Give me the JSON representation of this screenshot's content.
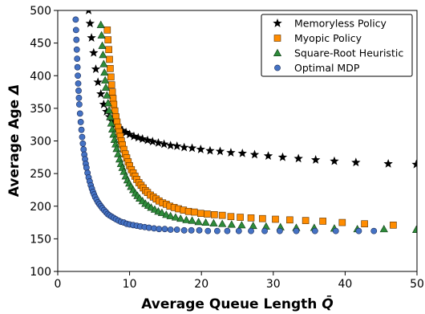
{
  "chart_data": {
    "type": "scatter",
    "title": "",
    "xlabel_main": "Average Queue Length ",
    "xlabel_symbol": "Q̄",
    "ylabel_main": "Average Age ",
    "ylabel_symbol": "Δ",
    "xlim": [
      0,
      50
    ],
    "ylim": [
      100,
      500
    ],
    "xticks": [
      0,
      10,
      20,
      30,
      40,
      50
    ],
    "yticks": [
      100,
      150,
      200,
      250,
      300,
      350,
      400,
      450,
      500
    ],
    "grid": false,
    "legend_position": "top-right",
    "series": [
      {
        "name": "Memoryless Policy",
        "marker": "star",
        "color": "#000000",
        "x": [
          4.3,
          4.5,
          4.7,
          5.0,
          5.3,
          5.6,
          6.0,
          6.4,
          6.8,
          7.2,
          7.6,
          8.0,
          8.5,
          9.0,
          9.5,
          10.0,
          10.6,
          11.2,
          11.8,
          12.5,
          13.2,
          14.0,
          14.8,
          15.7,
          16.6,
          17.6,
          18.7,
          19.9,
          21.2,
          22.6,
          24.1,
          25.7,
          27.4,
          29.3,
          31.3,
          33.5,
          35.9,
          38.5,
          41.5,
          46.0,
          49.9
        ],
        "y": [
          500,
          480,
          458,
          435,
          410,
          390,
          372,
          356,
          345,
          337,
          330,
          325,
          320,
          316,
          313,
          310,
          307,
          305,
          303,
          301,
          299,
          297,
          295,
          293,
          292,
          290,
          289,
          287,
          285,
          284,
          282,
          281,
          279,
          277,
          275,
          273,
          271,
          269,
          267,
          265,
          264
        ]
      },
      {
        "name": "Myopic Policy",
        "marker": "square",
        "color": "#ff8c00",
        "x": [
          6.9,
          7.0,
          7.1,
          7.2,
          7.3,
          7.4,
          7.5,
          7.6,
          7.7,
          7.8,
          7.95,
          8.1,
          8.25,
          8.4,
          8.55,
          8.7,
          8.85,
          9.0,
          9.2,
          9.4,
          9.6,
          9.8,
          10.0,
          10.25,
          10.5,
          10.75,
          11.0,
          11.3,
          11.6,
          11.9,
          12.2,
          12.5,
          12.9,
          13.3,
          13.7,
          14.1,
          14.6,
          15.1,
          15.6,
          16.2,
          16.8,
          17.5,
          18.2,
          19.0,
          19.9,
          20.8,
          21.8,
          22.9,
          24.1,
          25.4,
          26.9,
          28.5,
          30.3,
          32.3,
          34.5,
          36.9,
          39.6,
          42.7,
          46.7
        ],
        "y": [
          470,
          455,
          440,
          425,
          411,
          398,
          386,
          375,
          365,
          356,
          346,
          337,
          329,
          321,
          314,
          307,
          300,
          294,
          287,
          280,
          274,
          268,
          262,
          256,
          251,
          246,
          241,
          236,
          232,
          228,
          224,
          221,
          217,
          214,
          211,
          208,
          205,
          203,
          200,
          198,
          196,
          194,
          192,
          191,
          189,
          188,
          187,
          186,
          184,
          183,
          182,
          181,
          180,
          179,
          178,
          177,
          175,
          173,
          171
        ]
      },
      {
        "name": "Square-Root Heuristic",
        "marker": "triangle",
        "color": "#2e8b3a",
        "x": [
          6.0,
          6.1,
          6.2,
          6.3,
          6.4,
          6.5,
          6.6,
          6.7,
          6.85,
          7.0,
          7.15,
          7.3,
          7.45,
          7.6,
          7.75,
          7.9,
          8.05,
          8.2,
          8.4,
          8.6,
          8.8,
          9.0,
          9.2,
          9.45,
          9.7,
          9.95,
          10.2,
          10.5,
          10.8,
          11.1,
          11.4,
          11.8,
          12.2,
          12.6,
          13.0,
          13.5,
          14.0,
          14.5,
          15.1,
          15.7,
          16.4,
          17.1,
          17.9,
          18.7,
          19.6,
          20.6,
          21.7,
          22.9,
          24.2,
          25.6,
          27.2,
          29.0,
          31.0,
          33.2,
          35.7,
          38.5,
          41.7,
          45.4,
          49.9
        ],
        "y": [
          478,
          462,
          446,
          432,
          418,
          405,
          393,
          382,
          370,
          358,
          347,
          337,
          327,
          318,
          310,
          302,
          295,
          288,
          280,
          272,
          265,
          259,
          253,
          246,
          240,
          235,
          230,
          225,
          220,
          216,
          212,
          208,
          204,
          201,
          198,
          195,
          192,
          190,
          187,
          185,
          183,
          181,
          179,
          178,
          176,
          175,
          174,
          173,
          172,
          171,
          170,
          169,
          168,
          167,
          167,
          166,
          165,
          165,
          164
        ]
      },
      {
        "name": "Optimal MDP",
        "marker": "circle",
        "color": "#4472c4",
        "x": [
          2.5,
          2.55,
          2.6,
          2.65,
          2.7,
          2.75,
          2.8,
          2.85,
          2.9,
          2.95,
          3.0,
          3.1,
          3.2,
          3.3,
          3.4,
          3.5,
          3.6,
          3.7,
          3.8,
          3.9,
          4.0,
          4.15,
          4.3,
          4.45,
          4.6,
          4.75,
          4.9,
          5.05,
          5.2,
          5.4,
          5.6,
          5.8,
          6.0,
          6.2,
          6.45,
          6.7,
          6.95,
          7.2,
          7.5,
          7.8,
          8.1,
          8.45,
          8.8,
          9.2,
          9.6,
          10.0,
          10.5,
          11.0,
          11.5,
          12.1,
          12.7,
          13.4,
          14.1,
          14.9,
          15.7,
          16.6,
          17.6,
          18.6,
          19.7,
          20.9,
          22.2,
          23.6,
          25.2,
          26.9,
          28.8,
          30.9,
          33.2,
          35.8,
          38.7,
          41.9,
          44.0
        ],
        "y": [
          486,
          470,
          455,
          440,
          426,
          413,
          400,
          388,
          377,
          366,
          356,
          342,
          329,
          317,
          306,
          296,
          287,
          279,
          272,
          265,
          259,
          251,
          244,
          238,
          232,
          227,
          222,
          218,
          214,
          210,
          206,
          203,
          200,
          197,
          194,
          191,
          188,
          186,
          184,
          182,
          180,
          178,
          176,
          175,
          173,
          172,
          171,
          170,
          169,
          168,
          167,
          166,
          165,
          165,
          164,
          164,
          163,
          163,
          163,
          162,
          162,
          162,
          162,
          162,
          162,
          162,
          162,
          162,
          162,
          162,
          162
        ]
      }
    ]
  }
}
